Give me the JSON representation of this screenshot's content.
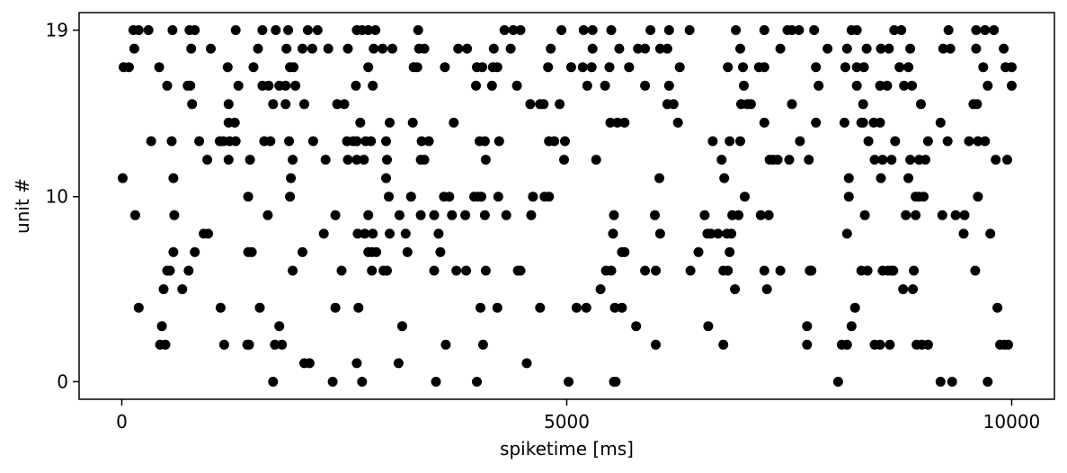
{
  "chart_data": {
    "type": "scatter",
    "xlabel": "spiketime [ms]",
    "ylabel": "unit #",
    "xlim": [
      -480,
      10480
    ],
    "ylim": [
      -0.95,
      19.95
    ],
    "x_ticks": [
      {
        "value": 0,
        "label": "0"
      },
      {
        "value": 5000,
        "label": "5000"
      },
      {
        "value": 10000,
        "label": "10000"
      }
    ],
    "y_ticks": [
      {
        "value": 0,
        "label": "0"
      },
      {
        "value": 10,
        "label": "10"
      },
      {
        "value": 19,
        "label": "19"
      }
    ],
    "grid": false,
    "marker_color": "#000000",
    "points": [
      [
        1700,
        0
      ],
      [
        2370,
        0
      ],
      [
        2700,
        0
      ],
      [
        3530,
        0
      ],
      [
        3990,
        0
      ],
      [
        5020,
        0
      ],
      [
        5530,
        0
      ],
      [
        5550,
        0
      ],
      [
        8050,
        0
      ],
      [
        9200,
        0
      ],
      [
        9330,
        0
      ],
      [
        9730,
        0
      ],
      [
        2050,
        1
      ],
      [
        2110,
        1
      ],
      [
        2640,
        1
      ],
      [
        3110,
        1
      ],
      [
        4550,
        1
      ],
      [
        430,
        2
      ],
      [
        490,
        2
      ],
      [
        1150,
        2
      ],
      [
        1410,
        2
      ],
      [
        1430,
        2
      ],
      [
        1720,
        2
      ],
      [
        1800,
        2
      ],
      [
        3640,
        2
      ],
      [
        4060,
        2
      ],
      [
        6000,
        2
      ],
      [
        6760,
        2
      ],
      [
        7700,
        2
      ],
      [
        8090,
        2
      ],
      [
        8150,
        2
      ],
      [
        8460,
        2
      ],
      [
        8520,
        2
      ],
      [
        8630,
        2
      ],
      [
        8930,
        2
      ],
      [
        8990,
        2
      ],
      [
        9060,
        2
      ],
      [
        9870,
        2
      ],
      [
        9920,
        2
      ],
      [
        9960,
        2
      ],
      [
        450,
        3
      ],
      [
        1770,
        3
      ],
      [
        3150,
        3
      ],
      [
        5780,
        3
      ],
      [
        6590,
        3
      ],
      [
        7700,
        3
      ],
      [
        8200,
        3
      ],
      [
        190,
        4
      ],
      [
        1110,
        4
      ],
      [
        1550,
        4
      ],
      [
        2400,
        4
      ],
      [
        2660,
        4
      ],
      [
        4030,
        4
      ],
      [
        4220,
        4
      ],
      [
        4700,
        4
      ],
      [
        5110,
        4
      ],
      [
        5220,
        4
      ],
      [
        5540,
        4
      ],
      [
        5620,
        4
      ],
      [
        8240,
        4
      ],
      [
        9840,
        4
      ],
      [
        470,
        5
      ],
      [
        680,
        5
      ],
      [
        5380,
        5
      ],
      [
        6890,
        5
      ],
      [
        7250,
        5
      ],
      [
        8780,
        5
      ],
      [
        8890,
        5
      ],
      [
        510,
        6
      ],
      [
        540,
        6
      ],
      [
        750,
        6
      ],
      [
        1920,
        6
      ],
      [
        2470,
        6
      ],
      [
        2810,
        6
      ],
      [
        2940,
        6
      ],
      [
        2980,
        6
      ],
      [
        3510,
        6
      ],
      [
        3760,
        6
      ],
      [
        3870,
        6
      ],
      [
        4090,
        6
      ],
      [
        4450,
        6
      ],
      [
        4480,
        6
      ],
      [
        5440,
        6
      ],
      [
        5500,
        6
      ],
      [
        5880,
        6
      ],
      [
        6000,
        6
      ],
      [
        6390,
        6
      ],
      [
        6760,
        6
      ],
      [
        6810,
        6
      ],
      [
        7220,
        6
      ],
      [
        7400,
        6
      ],
      [
        7730,
        6
      ],
      [
        7750,
        6
      ],
      [
        8310,
        6
      ],
      [
        8380,
        6
      ],
      [
        8550,
        6
      ],
      [
        8610,
        6
      ],
      [
        8650,
        6
      ],
      [
        8670,
        6
      ],
      [
        8900,
        6
      ],
      [
        9590,
        6
      ],
      [
        580,
        7
      ],
      [
        820,
        7
      ],
      [
        1420,
        7
      ],
      [
        1460,
        7
      ],
      [
        2030,
        7
      ],
      [
        2770,
        7
      ],
      [
        2810,
        7
      ],
      [
        2860,
        7
      ],
      [
        3210,
        7
      ],
      [
        3580,
        7
      ],
      [
        5620,
        7
      ],
      [
        5650,
        7
      ],
      [
        6480,
        7
      ],
      [
        6830,
        7
      ],
      [
        920,
        8
      ],
      [
        970,
        8
      ],
      [
        2270,
        8
      ],
      [
        2650,
        8
      ],
      [
        2730,
        8
      ],
      [
        2820,
        8
      ],
      [
        3010,
        8
      ],
      [
        3190,
        8
      ],
      [
        3560,
        8
      ],
      [
        5520,
        8
      ],
      [
        6050,
        8
      ],
      [
        6580,
        8
      ],
      [
        6620,
        8
      ],
      [
        6700,
        8
      ],
      [
        6800,
        8
      ],
      [
        6850,
        8
      ],
      [
        8150,
        8
      ],
      [
        9460,
        8
      ],
      [
        9760,
        8
      ],
      [
        150,
        9
      ],
      [
        590,
        9
      ],
      [
        1640,
        9
      ],
      [
        2400,
        9
      ],
      [
        2770,
        9
      ],
      [
        3120,
        9
      ],
      [
        3360,
        9
      ],
      [
        3510,
        9
      ],
      [
        3710,
        9
      ],
      [
        3860,
        9
      ],
      [
        4080,
        9
      ],
      [
        4320,
        9
      ],
      [
        4600,
        9
      ],
      [
        5530,
        9
      ],
      [
        5990,
        9
      ],
      [
        6550,
        9
      ],
      [
        6860,
        9
      ],
      [
        6930,
        9
      ],
      [
        7180,
        9
      ],
      [
        7270,
        9
      ],
      [
        8350,
        9
      ],
      [
        8810,
        9
      ],
      [
        8920,
        9
      ],
      [
        9220,
        9
      ],
      [
        9370,
        9
      ],
      [
        9470,
        9
      ],
      [
        1420,
        10
      ],
      [
        1890,
        10
      ],
      [
        3000,
        10
      ],
      [
        3250,
        10
      ],
      [
        3620,
        10
      ],
      [
        3680,
        10
      ],
      [
        3960,
        10
      ],
      [
        4000,
        10
      ],
      [
        4040,
        10
      ],
      [
        4230,
        10
      ],
      [
        4620,
        10
      ],
      [
        4750,
        10
      ],
      [
        4800,
        10
      ],
      [
        7000,
        10
      ],
      [
        8170,
        10
      ],
      [
        8920,
        10
      ],
      [
        8960,
        10
      ],
      [
        9010,
        10
      ],
      [
        9620,
        10
      ],
      [
        10,
        11
      ],
      [
        580,
        11
      ],
      [
        1900,
        11
      ],
      [
        2970,
        11
      ],
      [
        6040,
        11
      ],
      [
        6770,
        11
      ],
      [
        8170,
        11
      ],
      [
        8530,
        11
      ],
      [
        8840,
        11
      ],
      [
        960,
        12
      ],
      [
        1200,
        12
      ],
      [
        1440,
        12
      ],
      [
        1920,
        12
      ],
      [
        2290,
        12
      ],
      [
        2540,
        12
      ],
      [
        2640,
        12
      ],
      [
        2720,
        12
      ],
      [
        2980,
        12
      ],
      [
        3360,
        12
      ],
      [
        3400,
        12
      ],
      [
        4090,
        12
      ],
      [
        4970,
        12
      ],
      [
        5330,
        12
      ],
      [
        6740,
        12
      ],
      [
        7280,
        12
      ],
      [
        7320,
        12
      ],
      [
        7370,
        12
      ],
      [
        7500,
        12
      ],
      [
        7720,
        12
      ],
      [
        8460,
        12
      ],
      [
        8550,
        12
      ],
      [
        8650,
        12
      ],
      [
        8860,
        12
      ],
      [
        8960,
        12
      ],
      [
        9030,
        12
      ],
      [
        9820,
        12
      ],
      [
        9950,
        12
      ],
      [
        330,
        13
      ],
      [
        560,
        13
      ],
      [
        870,
        13
      ],
      [
        1100,
        13
      ],
      [
        1140,
        13
      ],
      [
        1210,
        13
      ],
      [
        1280,
        13
      ],
      [
        1600,
        13
      ],
      [
        1670,
        13
      ],
      [
        1880,
        13
      ],
      [
        2150,
        13
      ],
      [
        2530,
        13
      ],
      [
        2600,
        13
      ],
      [
        2640,
        13
      ],
      [
        2740,
        13
      ],
      [
        2800,
        13
      ],
      [
        2970,
        13
      ],
      [
        3370,
        13
      ],
      [
        3450,
        13
      ],
      [
        4020,
        13
      ],
      [
        4080,
        13
      ],
      [
        4240,
        13
      ],
      [
        4800,
        13
      ],
      [
        4860,
        13
      ],
      [
        4980,
        13
      ],
      [
        6640,
        13
      ],
      [
        6830,
        13
      ],
      [
        6950,
        13
      ],
      [
        7620,
        13
      ],
      [
        8390,
        13
      ],
      [
        8690,
        13
      ],
      [
        9060,
        13
      ],
      [
        9280,
        13
      ],
      [
        9520,
        13
      ],
      [
        9620,
        13
      ],
      [
        9700,
        13
      ],
      [
        1200,
        14
      ],
      [
        1270,
        14
      ],
      [
        2680,
        14
      ],
      [
        3010,
        14
      ],
      [
        3270,
        14
      ],
      [
        3730,
        14
      ],
      [
        5490,
        14
      ],
      [
        5570,
        14
      ],
      [
        5650,
        14
      ],
      [
        6250,
        14
      ],
      [
        7220,
        14
      ],
      [
        7800,
        14
      ],
      [
        8120,
        14
      ],
      [
        8310,
        14
      ],
      [
        8330,
        14
      ],
      [
        8450,
        14
      ],
      [
        8520,
        14
      ],
      [
        9200,
        14
      ],
      [
        790,
        15
      ],
      [
        1200,
        15
      ],
      [
        2420,
        15
      ],
      [
        2500,
        15
      ],
      [
        1700,
        15
      ],
      [
        1840,
        15
      ],
      [
        2050,
        15
      ],
      [
        4590,
        15
      ],
      [
        4700,
        15
      ],
      [
        4740,
        15
      ],
      [
        4920,
        15
      ],
      [
        6130,
        15
      ],
      [
        6200,
        15
      ],
      [
        6960,
        15
      ],
      [
        7070,
        15
      ],
      [
        7030,
        15
      ],
      [
        7530,
        15
      ],
      [
        8330,
        15
      ],
      [
        8980,
        15
      ],
      [
        9570,
        15
      ],
      [
        9610,
        15
      ],
      [
        510,
        16
      ],
      [
        740,
        16
      ],
      [
        770,
        16
      ],
      [
        1310,
        16
      ],
      [
        1580,
        16
      ],
      [
        1650,
        16
      ],
      [
        1770,
        16
      ],
      [
        1840,
        16
      ],
      [
        1950,
        16
      ],
      [
        2630,
        16
      ],
      [
        2820,
        16
      ],
      [
        3980,
        16
      ],
      [
        4160,
        16
      ],
      [
        4440,
        16
      ],
      [
        5230,
        16
      ],
      [
        5430,
        16
      ],
      [
        5880,
        16
      ],
      [
        6150,
        16
      ],
      [
        6990,
        16
      ],
      [
        7830,
        16
      ],
      [
        8260,
        16
      ],
      [
        8520,
        16
      ],
      [
        8600,
        16
      ],
      [
        8790,
        16
      ],
      [
        8880,
        16
      ],
      [
        9730,
        16
      ],
      [
        10000,
        16
      ],
      [
        20,
        17
      ],
      [
        80,
        17
      ],
      [
        420,
        17
      ],
      [
        1190,
        17
      ],
      [
        1480,
        17
      ],
      [
        1890,
        17
      ],
      [
        1930,
        17
      ],
      [
        2770,
        17
      ],
      [
        3280,
        17
      ],
      [
        3320,
        17
      ],
      [
        3630,
        17
      ],
      [
        3990,
        17
      ],
      [
        4050,
        17
      ],
      [
        4170,
        17
      ],
      [
        4220,
        17
      ],
      [
        4790,
        17
      ],
      [
        5050,
        17
      ],
      [
        5180,
        17
      ],
      [
        5280,
        17
      ],
      [
        5480,
        17
      ],
      [
        5700,
        17
      ],
      [
        6270,
        17
      ],
      [
        6810,
        17
      ],
      [
        6980,
        17
      ],
      [
        7160,
        17
      ],
      [
        7220,
        17
      ],
      [
        7800,
        17
      ],
      [
        8130,
        17
      ],
      [
        8260,
        17
      ],
      [
        8340,
        17
      ],
      [
        8740,
        17
      ],
      [
        8840,
        17
      ],
      [
        9680,
        17
      ],
      [
        9930,
        17
      ],
      [
        10000,
        17
      ],
      [
        140,
        18
      ],
      [
        780,
        18
      ],
      [
        1000,
        18
      ],
      [
        1530,
        18
      ],
      [
        1850,
        18
      ],
      [
        2030,
        18
      ],
      [
        2140,
        18
      ],
      [
        2320,
        18
      ],
      [
        2540,
        18
      ],
      [
        2830,
        18
      ],
      [
        2930,
        18
      ],
      [
        3040,
        18
      ],
      [
        3340,
        18
      ],
      [
        3400,
        18
      ],
      [
        3780,
        18
      ],
      [
        3880,
        18
      ],
      [
        4180,
        18
      ],
      [
        4370,
        18
      ],
      [
        4820,
        18
      ],
      [
        5290,
        18
      ],
      [
        5590,
        18
      ],
      [
        5800,
        18
      ],
      [
        5880,
        18
      ],
      [
        6050,
        18
      ],
      [
        6130,
        18
      ],
      [
        6950,
        18
      ],
      [
        7400,
        18
      ],
      [
        7930,
        18
      ],
      [
        8150,
        18
      ],
      [
        8370,
        18
      ],
      [
        8530,
        18
      ],
      [
        8620,
        18
      ],
      [
        8860,
        18
      ],
      [
        9230,
        18
      ],
      [
        9310,
        18
      ],
      [
        9600,
        18
      ],
      [
        9910,
        18
      ],
      [
        130,
        19
      ],
      [
        190,
        19
      ],
      [
        300,
        19
      ],
      [
        570,
        19
      ],
      [
        760,
        19
      ],
      [
        820,
        19
      ],
      [
        1280,
        19
      ],
      [
        1580,
        19
      ],
      [
        1730,
        19
      ],
      [
        1870,
        19
      ],
      [
        2090,
        19
      ],
      [
        2200,
        19
      ],
      [
        2640,
        19
      ],
      [
        2700,
        19
      ],
      [
        2770,
        19
      ],
      [
        2850,
        19
      ],
      [
        3330,
        19
      ],
      [
        4300,
        19
      ],
      [
        4400,
        19
      ],
      [
        4480,
        19
      ],
      [
        4940,
        19
      ],
      [
        5190,
        19
      ],
      [
        5290,
        19
      ],
      [
        5500,
        19
      ],
      [
        5940,
        19
      ],
      [
        6150,
        19
      ],
      [
        6380,
        19
      ],
      [
        6900,
        19
      ],
      [
        7220,
        19
      ],
      [
        7480,
        19
      ],
      [
        7530,
        19
      ],
      [
        7610,
        19
      ],
      [
        7780,
        19
      ],
      [
        8200,
        19
      ],
      [
        8260,
        19
      ],
      [
        8680,
        19
      ],
      [
        8760,
        19
      ],
      [
        9290,
        19
      ],
      [
        9600,
        19
      ],
      [
        9700,
        19
      ],
      [
        9800,
        19
      ]
    ]
  }
}
